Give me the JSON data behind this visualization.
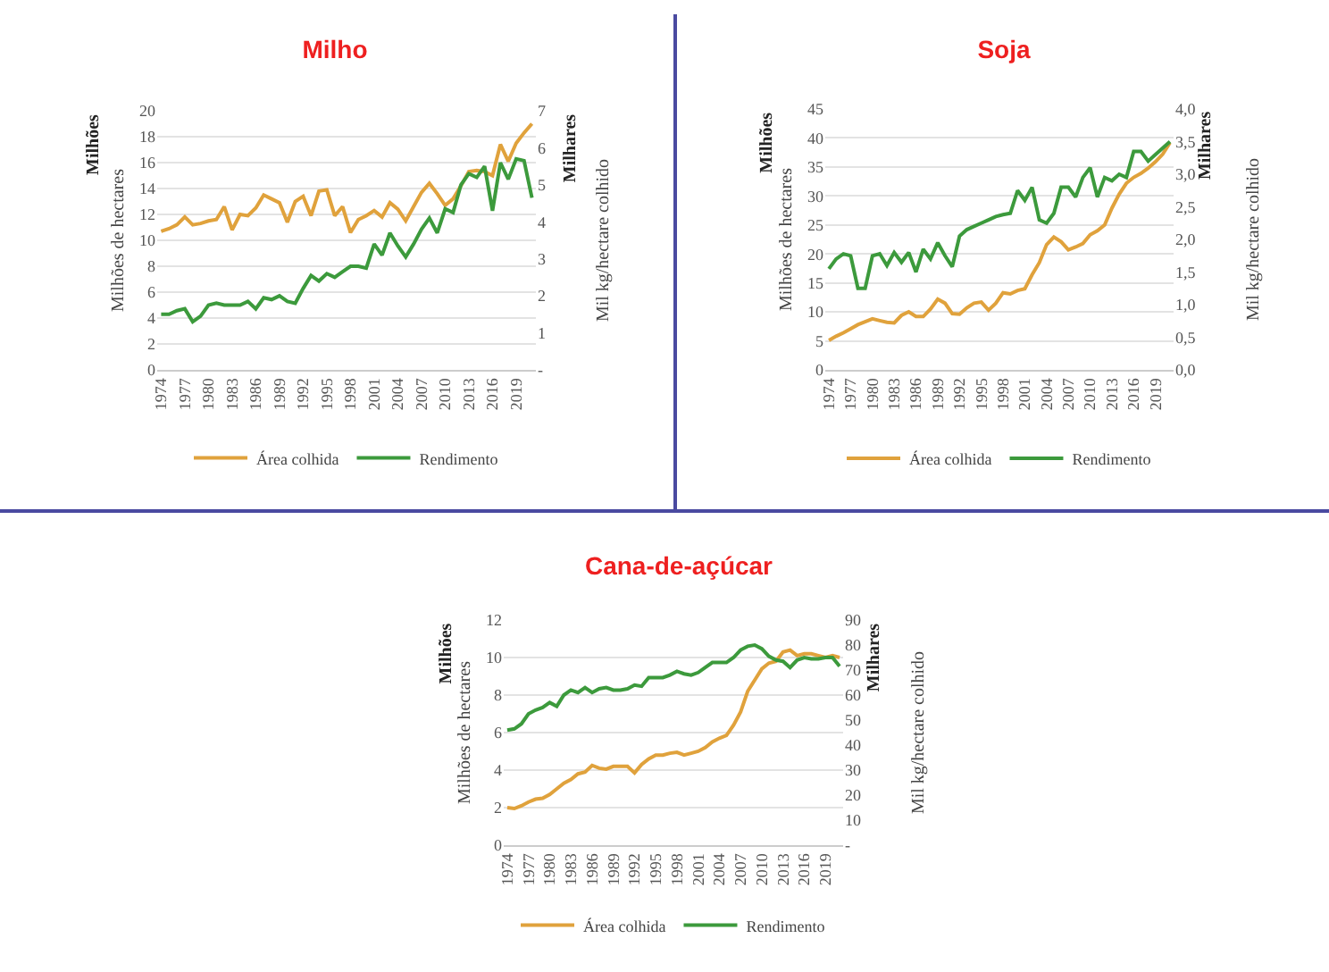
{
  "chart_data": [
    {
      "type": "line",
      "title": "Milho",
      "ylabel": "Milhões de hectares",
      "y2label": "Mil kg/hectare colhido",
      "annotations": [
        "Milhões",
        "Milhares"
      ],
      "grid": "y",
      "legend": "bottom",
      "x": [
        1974,
        1975,
        1976,
        1977,
        1978,
        1979,
        1980,
        1981,
        1982,
        1983,
        1984,
        1985,
        1986,
        1987,
        1988,
        1989,
        1990,
        1991,
        1992,
        1993,
        1994,
        1995,
        1996,
        1997,
        1998,
        1999,
        2000,
        2001,
        2002,
        2003,
        2004,
        2005,
        2006,
        2007,
        2008,
        2009,
        2010,
        2011,
        2012,
        2013,
        2014,
        2015,
        2016,
        2017,
        2018,
        2019,
        2020,
        2021
      ],
      "xlim": [
        1973.5,
        2021.5
      ],
      "xticks": [
        1974,
        1977,
        1980,
        1983,
        1986,
        1989,
        1992,
        1995,
        1998,
        2001,
        2004,
        2007,
        2010,
        2013,
        2016,
        2019
      ],
      "ylim": [
        0,
        20
      ],
      "yticks": [
        0,
        2,
        4,
        6,
        8,
        10,
        12,
        14,
        16,
        18,
        20
      ],
      "y2lim": [
        0,
        7
      ],
      "y2ticks": [
        {
          "value": 0,
          "label": "-"
        },
        1,
        2,
        3,
        4,
        5,
        6,
        7
      ],
      "series": [
        {
          "name": "Área colhida",
          "color": "#e0a23c",
          "values": [
            10.7,
            10.9,
            11.2,
            11.8,
            11.2,
            11.3,
            11.5,
            11.6,
            12.6,
            10.8,
            12.0,
            11.9,
            12.5,
            13.5,
            13.2,
            12.9,
            11.4,
            13.0,
            13.4,
            11.9,
            13.8,
            13.9,
            11.9,
            12.6,
            10.6,
            11.6,
            11.9,
            12.3,
            11.8,
            12.9,
            12.4,
            11.5,
            12.6,
            13.7,
            14.4,
            13.6,
            12.7,
            13.2,
            14.2,
            15.3,
            15.4,
            15.3,
            15.0,
            17.4,
            16.1,
            17.5,
            18.3,
            19.0
          ]
        },
        {
          "name": "Rendimento",
          "color": "#3c9a3c",
          "axis": "y2",
          "values": [
            1.5,
            1.5,
            1.6,
            1.65,
            1.3,
            1.45,
            1.75,
            1.8,
            1.75,
            1.75,
            1.75,
            1.85,
            1.65,
            1.95,
            1.9,
            2.0,
            1.85,
            1.8,
            2.2,
            2.55,
            2.4,
            2.6,
            2.5,
            2.65,
            2.8,
            2.8,
            2.75,
            3.4,
            3.1,
            3.7,
            3.35,
            3.05,
            3.4,
            3.8,
            4.1,
            3.7,
            4.35,
            4.25,
            5.0,
            5.3,
            5.2,
            5.5,
            4.3,
            5.6,
            5.15,
            5.7,
            5.65,
            4.65
          ]
        }
      ]
    },
    {
      "type": "line",
      "title": "Soja",
      "ylabel": "Milhões de hectares",
      "y2label": "Mil kg/hectare colhido",
      "annotations": [
        "Milhões",
        "Milhares"
      ],
      "grid": "y",
      "legend": "bottom",
      "x": [
        1974,
        1975,
        1976,
        1977,
        1978,
        1979,
        1980,
        1981,
        1982,
        1983,
        1984,
        1985,
        1986,
        1987,
        1988,
        1989,
        1990,
        1991,
        1992,
        1993,
        1994,
        1995,
        1996,
        1997,
        1998,
        1999,
        2000,
        2001,
        2002,
        2003,
        2004,
        2005,
        2006,
        2007,
        2008,
        2009,
        2010,
        2011,
        2012,
        2013,
        2014,
        2015,
        2016,
        2017,
        2018,
        2019,
        2020,
        2021
      ],
      "xlim": [
        1973.5,
        2021.5
      ],
      "xticks": [
        1974,
        1977,
        1980,
        1983,
        1986,
        1989,
        1992,
        1995,
        1998,
        2001,
        2004,
        2007,
        2010,
        2013,
        2016,
        2019
      ],
      "ylim": [
        0,
        45
      ],
      "yticks": [
        0,
        5,
        10,
        15,
        20,
        25,
        30,
        35,
        40,
        45
      ],
      "y2lim": [
        0,
        4
      ],
      "y2ticks": [
        {
          "value": 0,
          "label": "0,0"
        },
        {
          "value": 0.5,
          "label": "0,5"
        },
        {
          "value": 1,
          "label": "1,0"
        },
        {
          "value": 1.5,
          "label": "1,5"
        },
        {
          "value": 2,
          "label": "2,0"
        },
        {
          "value": 2.5,
          "label": "2,5"
        },
        {
          "value": 3,
          "label": "3,0"
        },
        {
          "value": 3.5,
          "label": "3,5"
        },
        {
          "value": 4,
          "label": "4,0"
        }
      ],
      "series": [
        {
          "name": "Área colhida",
          "color": "#e0a23c",
          "values": [
            5.1,
            5.8,
            6.4,
            7.1,
            7.8,
            8.3,
            8.8,
            8.5,
            8.2,
            8.1,
            9.4,
            10.0,
            9.2,
            9.2,
            10.5,
            12.2,
            11.5,
            9.7,
            9.6,
            10.7,
            11.5,
            11.7,
            10.3,
            11.5,
            13.3,
            13.1,
            13.7,
            14.0,
            16.4,
            18.5,
            21.6,
            22.9,
            22.1,
            20.7,
            21.2,
            21.8,
            23.3,
            24.0,
            25.0,
            27.9,
            30.3,
            32.2,
            33.2,
            33.9,
            34.8,
            35.9,
            37.2,
            39.2
          ]
        },
        {
          "name": "Rendimento",
          "color": "#3c9a3c",
          "axis": "y2",
          "values": [
            1.55,
            1.7,
            1.78,
            1.75,
            1.25,
            1.25,
            1.75,
            1.78,
            1.6,
            1.8,
            1.65,
            1.8,
            1.5,
            1.85,
            1.7,
            1.95,
            1.75,
            1.58,
            2.05,
            2.15,
            2.2,
            2.25,
            2.3,
            2.35,
            2.38,
            2.4,
            2.75,
            2.6,
            2.8,
            2.3,
            2.25,
            2.4,
            2.8,
            2.8,
            2.65,
            2.95,
            3.1,
            2.65,
            2.95,
            2.9,
            3.0,
            2.95,
            3.35,
            3.35,
            3.2,
            3.3,
            3.4,
            3.5
          ]
        }
      ]
    },
    {
      "type": "line",
      "title": "Cana-de-açúcar",
      "ylabel": "Milhões de hectares",
      "y2label": "Mil kg/hectare colhido",
      "annotations": [
        "Milhões",
        "Milhares"
      ],
      "grid": "y",
      "legend": "bottom",
      "x": [
        1974,
        1975,
        1976,
        1977,
        1978,
        1979,
        1980,
        1981,
        1982,
        1983,
        1984,
        1985,
        1986,
        1987,
        1988,
        1989,
        1990,
        1991,
        1992,
        1993,
        1994,
        1995,
        1996,
        1997,
        1998,
        1999,
        2000,
        2001,
        2002,
        2003,
        2004,
        2005,
        2006,
        2007,
        2008,
        2009,
        2010,
        2011,
        2012,
        2013,
        2014,
        2015,
        2016,
        2017,
        2018,
        2019,
        2020,
        2021
      ],
      "xlim": [
        1973.5,
        2021.5
      ],
      "xticks": [
        1974,
        1977,
        1980,
        1983,
        1986,
        1989,
        1992,
        1995,
        1998,
        2001,
        2004,
        2007,
        2010,
        2013,
        2016,
        2019
      ],
      "ylim": [
        0,
        12
      ],
      "yticks": [
        0,
        2,
        4,
        6,
        8,
        10,
        12
      ],
      "y2lim": [
        0,
        90
      ],
      "y2ticks": [
        {
          "value": 0,
          "label": "-"
        },
        10,
        20,
        30,
        40,
        50,
        60,
        70,
        80,
        90
      ],
      "series": [
        {
          "name": "Área colhida",
          "color": "#e0a23c",
          "values": [
            2.0,
            1.95,
            2.1,
            2.3,
            2.45,
            2.5,
            2.7,
            3.0,
            3.3,
            3.5,
            3.8,
            3.9,
            4.25,
            4.1,
            4.05,
            4.2,
            4.2,
            4.2,
            3.85,
            4.3,
            4.6,
            4.8,
            4.8,
            4.9,
            4.95,
            4.8,
            4.9,
            5.0,
            5.2,
            5.5,
            5.7,
            5.85,
            6.4,
            7.1,
            8.2,
            8.8,
            9.4,
            9.7,
            9.8,
            10.3,
            10.4,
            10.1,
            10.2,
            10.2,
            10.1,
            10.0,
            10.1,
            10.0
          ]
        },
        {
          "name": "Rendimento",
          "color": "#3c9a3c",
          "axis": "y2",
          "values": [
            46,
            46.5,
            48.5,
            52.5,
            54,
            55,
            57,
            55.5,
            60,
            62,
            61,
            63,
            61,
            62.5,
            63,
            62,
            62,
            62.5,
            64,
            63.5,
            67,
            67,
            67,
            68,
            69.5,
            68.5,
            68,
            69,
            71,
            73,
            73,
            73,
            75,
            78,
            79.5,
            80,
            78.5,
            75.5,
            74,
            73.5,
            71,
            74,
            75,
            74.5,
            74.5,
            75,
            75,
            71.5
          ]
        }
      ]
    }
  ]
}
